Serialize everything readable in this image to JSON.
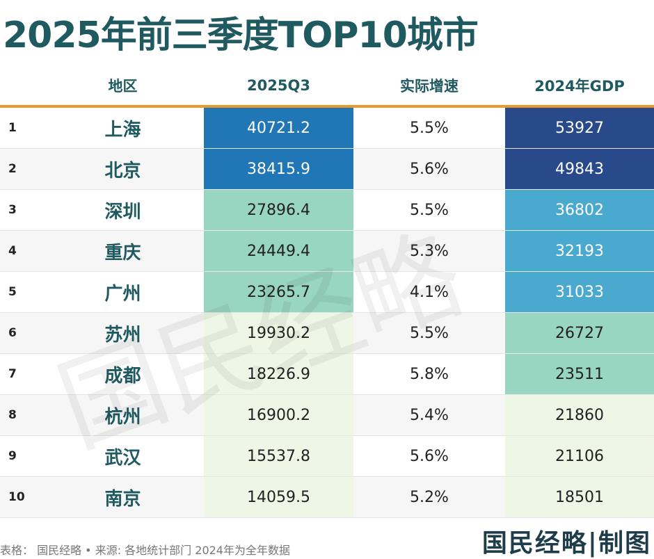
{
  "title": "2025年前三季度TOP10城市",
  "headers": [
    "",
    "地区",
    "2025Q3",
    "实际增速",
    "2024年GDP"
  ],
  "colors": {
    "q3_top": "#2177b6",
    "mid": "#98d6c2",
    "light": "#eef7e6",
    "gdp_top": "#284a8b",
    "gdp_mid": "#4aa9cf"
  },
  "rows": [
    {
      "rank": "1",
      "city": "上海",
      "q3": "40721.2",
      "growth": "5.5%",
      "gdp": "53927"
    },
    {
      "rank": "2",
      "city": "北京",
      "q3": "38415.9",
      "growth": "5.6%",
      "gdp": "49843"
    },
    {
      "rank": "3",
      "city": "深圳",
      "q3": "27896.4",
      "growth": "5.5%",
      "gdp": "36802"
    },
    {
      "rank": "4",
      "city": "重庆",
      "q3": "24449.4",
      "growth": "5.3%",
      "gdp": "32193"
    },
    {
      "rank": "5",
      "city": "广州",
      "q3": "23265.7",
      "growth": "4.1%",
      "gdp": "31033"
    },
    {
      "rank": "6",
      "city": "苏州",
      "q3": "19930.2",
      "growth": "5.5%",
      "gdp": "26727"
    },
    {
      "rank": "7",
      "city": "成都",
      "q3": "18226.9",
      "growth": "5.8%",
      "gdp": "23511"
    },
    {
      "rank": "8",
      "city": "杭州",
      "q3": "16900.2",
      "growth": "5.4%",
      "gdp": "21860"
    },
    {
      "rank": "9",
      "city": "武汉",
      "q3": "15537.8",
      "growth": "5.6%",
      "gdp": "21106"
    },
    {
      "rank": "10",
      "city": "南京",
      "q3": "14059.5",
      "growth": "5.2%",
      "gdp": "18501"
    }
  ],
  "watermark": "国民经略",
  "footer": "表格：  国民经略 • 来源: 各地统计部门 2024年为全年数据",
  "brand": "国民经略|制图"
}
